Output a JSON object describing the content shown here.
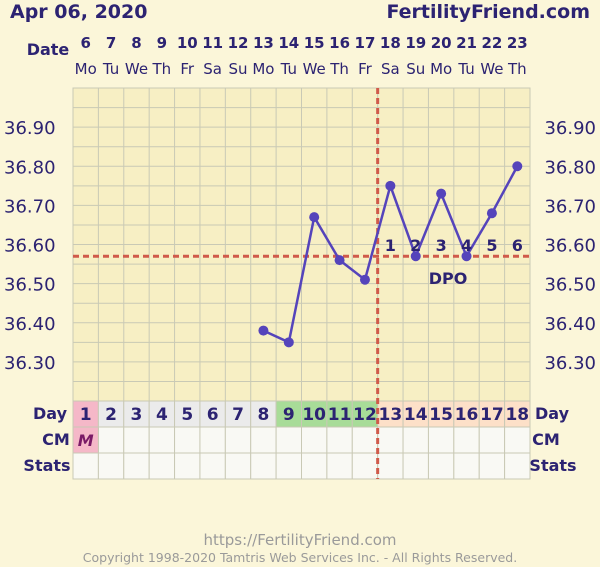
{
  "header": {
    "date_title": "Apr 06, 2020",
    "site_title": "FertilityFriend.com"
  },
  "row_labels": {
    "date": "Date",
    "day": "Day",
    "cm": "CM",
    "stats": "Stats"
  },
  "dates": [
    "6",
    "7",
    "8",
    "9",
    "10",
    "11",
    "12",
    "13",
    "14",
    "15",
    "16",
    "17",
    "18",
    "19",
    "20",
    "21",
    "22",
    "23"
  ],
  "weekdays": [
    "Mo",
    "Tu",
    "We",
    "Th",
    "Fr",
    "Sa",
    "Su",
    "Mo",
    "Tu",
    "We",
    "Th",
    "Fr",
    "Sa",
    "Su",
    "Mo",
    "Tu",
    "We",
    "Th"
  ],
  "cycle_days": [
    "1",
    "2",
    "3",
    "4",
    "5",
    "6",
    "7",
    "8",
    "9",
    "10",
    "11",
    "12",
    "13",
    "14",
    "15",
    "16",
    "17",
    "18"
  ],
  "cm_entries": [
    {
      "day": 1,
      "label": "M"
    }
  ],
  "cycle_day_phase_colors": {
    "menstruation": "#f5b8c8",
    "fertile": "#a8dc98",
    "luteal": "#fde0c8",
    "default": "#ebebeb"
  },
  "chart_data": {
    "type": "line",
    "x": [
      13,
      14,
      15,
      16,
      17,
      18,
      19,
      20,
      21,
      22,
      23
    ],
    "y": [
      36.38,
      36.35,
      36.67,
      36.56,
      36.51,
      36.75,
      36.57,
      36.73,
      36.57,
      36.68,
      36.8
    ],
    "xlabel": "Date",
    "ylabel": "",
    "ylim": [
      36.2,
      37.0
    ],
    "yticks": [
      36.3,
      36.4,
      36.5,
      36.6,
      36.7,
      36.8,
      36.9
    ],
    "coverline": 36.57,
    "ovulation_day": 12,
    "dpo_label": "DPO",
    "dpo_numbers": [
      "1",
      "2",
      "3",
      "4",
      "5",
      "6"
    ],
    "line_color": "#5544bb",
    "coverline_color": "#d05a4a",
    "grid": true
  },
  "footer": {
    "url": "https://FertilityFriend.com",
    "copyright": "Copyright 1998-2020 Tamtris Web Services Inc. - All Rights Reserved."
  }
}
